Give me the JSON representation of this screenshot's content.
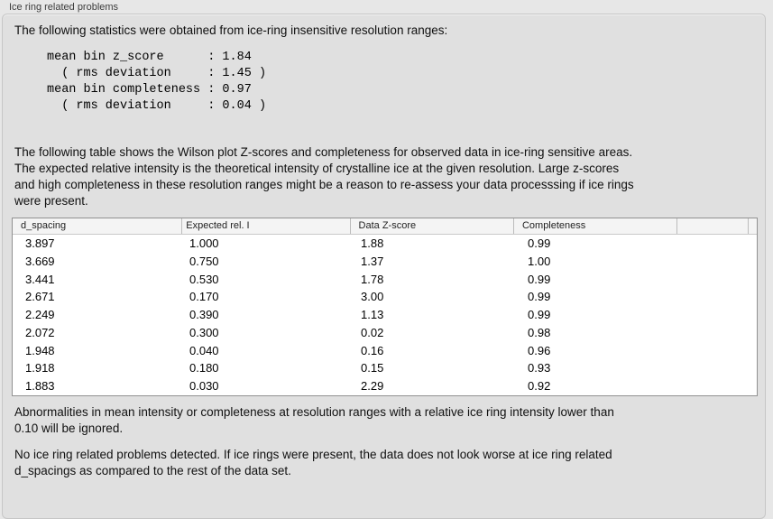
{
  "panel": {
    "title": "Ice ring related problems"
  },
  "intro": "The following statistics were obtained from ice-ring insensitive resolution ranges:",
  "stats_text": "mean bin z_score      : 1.84\n  ( rms deviation     : 1.45 )\nmean bin completeness : 0.97\n  ( rms deviation     : 0.04 )",
  "table_description": "The following table shows the Wilson plot Z-scores and completeness for observed data in ice-ring sensitive areas.\nThe expected relative intensity is the theoretical intensity of crystalline ice at the given resolution. Large z-scores\nand high completeness in these resolution ranges might be a reason to re-assess your data processsing if ice rings\nwere present.",
  "table": {
    "columns": [
      "d_spacing",
      "Expected rel. I",
      "Data Z-score",
      "Completeness"
    ],
    "rows": [
      [
        "3.897",
        "1.000",
        "1.88",
        "0.99"
      ],
      [
        "3.669",
        "0.750",
        "1.37",
        "1.00"
      ],
      [
        "3.441",
        "0.530",
        "1.78",
        "0.99"
      ],
      [
        "2.671",
        "0.170",
        "3.00",
        "0.99"
      ],
      [
        "2.249",
        "0.390",
        "1.13",
        "0.99"
      ],
      [
        "2.072",
        "0.300",
        "0.02",
        "0.98"
      ],
      [
        "1.948",
        "0.040",
        "0.16",
        "0.96"
      ],
      [
        "1.918",
        "0.180",
        "0.15",
        "0.93"
      ],
      [
        "1.883",
        "0.030",
        "2.29",
        "0.92"
      ]
    ]
  },
  "ignore_note": "Abnormalities in mean intensity or completeness at resolution ranges with a relative ice ring intensity lower than\n0.10 will be ignored.",
  "conclusion": "No ice ring related problems detected. If ice rings were present, the data does not look worse at ice ring related\nd_spacings as compared to the rest of the data set."
}
